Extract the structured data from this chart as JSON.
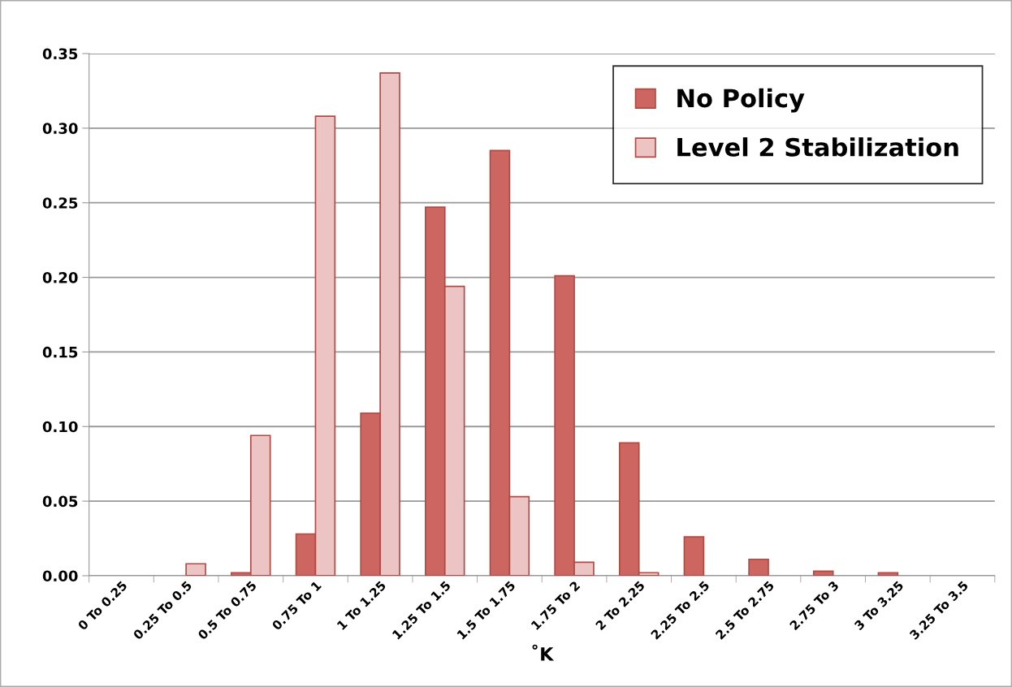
{
  "chart_data": {
    "type": "bar",
    "xlabel": "˚K",
    "categories": [
      "0 To 0.25",
      "0.25 To 0.5",
      "0.5 To 0.75",
      "0.75 To 1",
      "1 To 1.25",
      "1.25 To 1.5",
      "1.5 To 1.75",
      "1.75 To 2",
      "2 To 2.25",
      "2.25 To 2.5",
      "2.5 To 2.75",
      "2.75 To 3",
      "3 To 3.25",
      "3.25 To 3.5"
    ],
    "series": [
      {
        "name": "No Policy",
        "color": "#cd6660",
        "values": [
          0,
          0,
          0.002,
          0.028,
          0.109,
          0.247,
          0.285,
          0.201,
          0.089,
          0.026,
          0.011,
          0.003,
          0.002,
          0
        ]
      },
      {
        "name": "Level 2 Stabilization",
        "color": "#ecc4c4",
        "values": [
          0,
          0.008,
          0.094,
          0.308,
          0.337,
          0.194,
          0.053,
          0.009,
          0.002,
          0,
          0,
          0,
          0,
          0
        ]
      }
    ],
    "ylim": [
      0,
      0.35
    ],
    "yticks": [
      {
        "value": 0,
        "label": "0.00"
      },
      {
        "value": 0.05,
        "label": "0.05"
      },
      {
        "value": 0.1,
        "label": "0.10"
      },
      {
        "value": 0.15,
        "label": "0.15"
      },
      {
        "value": 0.2,
        "label": "0.20"
      },
      {
        "value": 0.25,
        "label": "0.25"
      },
      {
        "value": 0.3,
        "label": "0.30"
      },
      {
        "value": 0.35,
        "label": "0.35"
      }
    ],
    "grid": "y",
    "legend": "top right"
  }
}
